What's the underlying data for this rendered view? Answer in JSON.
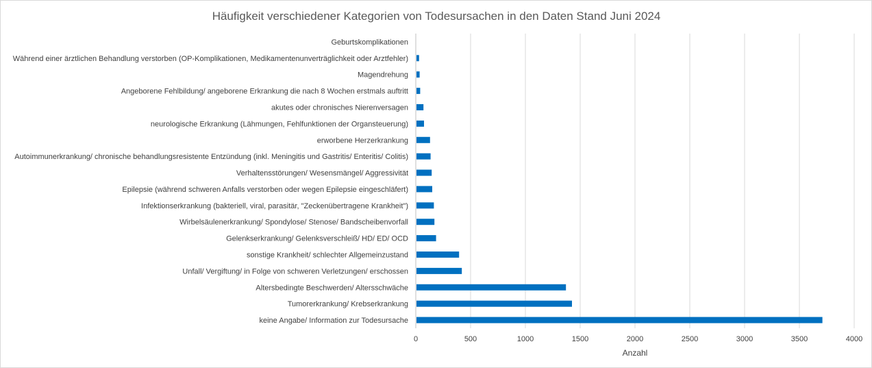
{
  "chart_data": {
    "type": "bar",
    "orientation": "horizontal",
    "title": "Häufigkeit verschiedener Kategorien von Todesursachen in den Daten Stand Juni 2024",
    "xlabel": "Anzahl",
    "ylabel": "",
    "xlim": [
      0,
      4000
    ],
    "xticks": [
      0,
      500,
      1000,
      1500,
      2000,
      2500,
      3000,
      3500,
      4000
    ],
    "grid": true,
    "legend": "none",
    "bar_color": "#0070c0",
    "categories": [
      "keine Angabe/ Information zur Todesursache",
      "Tumorerkrankung/ Krebserkrankung",
      "Altersbedingte Beschwerden/ Altersschwäche",
      "Unfall/ Vergiftung/ in Folge von schweren Verletzungen/ erschossen",
      "sonstige Krankheit/ schlechter Allgemeinzustand",
      "Gelenkserkrankung/ Gelenksverschleiß/ HD/ ED/ OCD",
      "Wirbelsäulenerkrankung/ Spondylose/ Stenose/ Bandscheibenvorfall",
      "Infektionserkrankung (bakteriell, viral, parasitär, \"Zeckenübertragene Krankheit\")",
      "Epilepsie (während schweren Anfalls verstorben oder wegen Epilepsie eingeschläfert)",
      "Verhaltensstörungen/ Wesensmängel/ Aggressivität",
      "Autoimmunerkrankung/ chronische behandlungsresistente Entzündung (inkl. Meningitis und Gastritis/ Enteritis/ Colitis)",
      "erworbene Herzerkrankung",
      "neurologische Erkrankung (Lähmungen, Fehlfunktionen der Organsteuerung)",
      "akutes oder chronisches Nierenversagen",
      "Angeborene Fehlbildung/ angeborene Erkrankung die nach 8 Wochen erstmals auftritt",
      "Magendrehung",
      "Während einer ärztlichen Behandlung verstorben (OP-Komplikationen, Medikamentenunverträglichkeit oder Arztfehler)",
      "Geburtskomplikationen"
    ],
    "values": [
      3710,
      1425,
      1370,
      420,
      395,
      185,
      170,
      165,
      150,
      145,
      135,
      130,
      75,
      70,
      40,
      35,
      30,
      5
    ]
  }
}
